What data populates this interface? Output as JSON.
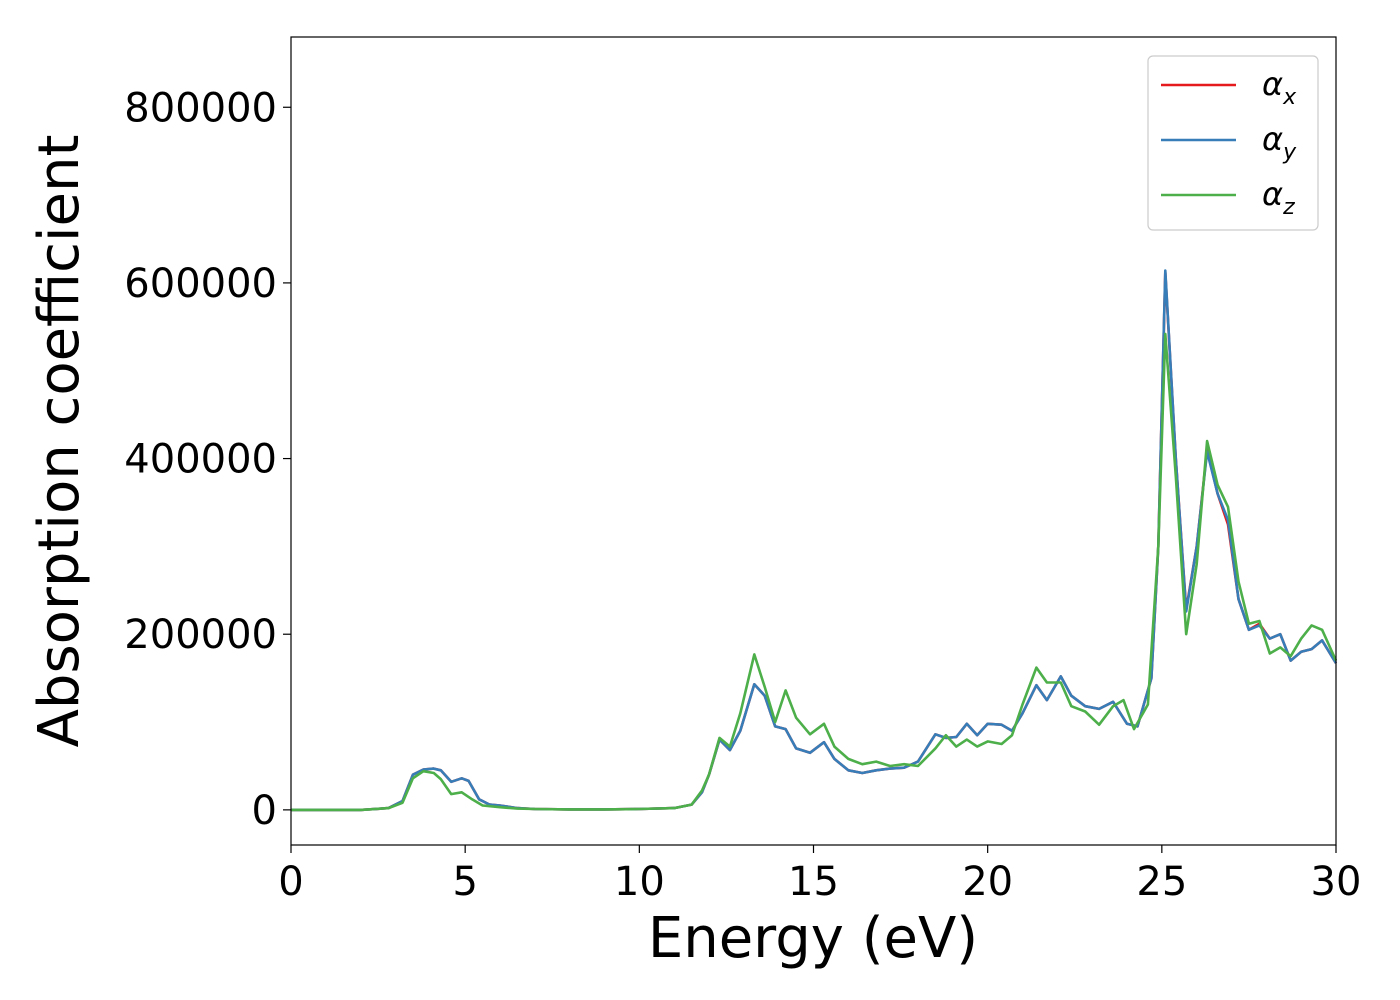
{
  "chart_data": {
    "type": "line",
    "title": "",
    "xlabel": "Energy (eV)",
    "ylabel": "Absorption coefficient",
    "xlim": [
      0,
      30
    ],
    "ylim": [
      -40000,
      880000
    ],
    "xticks": [
      0,
      5,
      10,
      15,
      20,
      25,
      30
    ],
    "yticks": [
      0,
      200000,
      400000,
      600000,
      800000
    ],
    "grid": false,
    "legend_position": "top-right",
    "series": [
      {
        "name": "αx",
        "base": "α",
        "sub": "x",
        "color": "#e41a1c",
        "points": [
          [
            0,
            0
          ],
          [
            2,
            0
          ],
          [
            2.8,
            2000
          ],
          [
            3.2,
            10000
          ],
          [
            3.5,
            40000
          ],
          [
            3.8,
            46000
          ],
          [
            4.1,
            47000
          ],
          [
            4.3,
            45000
          ],
          [
            4.6,
            32000
          ],
          [
            4.9,
            36000
          ],
          [
            5.1,
            33000
          ],
          [
            5.4,
            12000
          ],
          [
            5.7,
            6000
          ],
          [
            6,
            5000
          ],
          [
            6.5,
            2000
          ],
          [
            7,
            1000
          ],
          [
            8,
            500
          ],
          [
            9,
            500
          ],
          [
            10,
            1000
          ],
          [
            11,
            2000
          ],
          [
            11.5,
            6000
          ],
          [
            11.8,
            20000
          ],
          [
            12,
            40000
          ],
          [
            12.3,
            80000
          ],
          [
            12.6,
            68000
          ],
          [
            12.9,
            90000
          ],
          [
            13.3,
            143000
          ],
          [
            13.6,
            130000
          ],
          [
            13.9,
            95000
          ],
          [
            14.2,
            92000
          ],
          [
            14.5,
            70000
          ],
          [
            14.9,
            65000
          ],
          [
            15.3,
            77000
          ],
          [
            15.6,
            58000
          ],
          [
            16,
            45000
          ],
          [
            16.4,
            42000
          ],
          [
            16.8,
            45000
          ],
          [
            17.2,
            47000
          ],
          [
            17.6,
            48000
          ],
          [
            18,
            55000
          ],
          [
            18.5,
            86000
          ],
          [
            18.8,
            82000
          ],
          [
            19.1,
            83000
          ],
          [
            19.4,
            98000
          ],
          [
            19.7,
            85000
          ],
          [
            20,
            98000
          ],
          [
            20.4,
            97000
          ],
          [
            20.7,
            90000
          ],
          [
            21,
            110000
          ],
          [
            21.4,
            142000
          ],
          [
            21.7,
            125000
          ],
          [
            22.1,
            152000
          ],
          [
            22.4,
            130000
          ],
          [
            22.8,
            118000
          ],
          [
            23.2,
            115000
          ],
          [
            23.6,
            123000
          ],
          [
            24,
            98000
          ],
          [
            24.3,
            95000
          ],
          [
            24.7,
            150000
          ],
          [
            24.9,
            300000
          ],
          [
            25.1,
            612000
          ],
          [
            25.4,
            400000
          ],
          [
            25.7,
            228000
          ],
          [
            26,
            300000
          ],
          [
            26.3,
            410000
          ],
          [
            26.6,
            360000
          ],
          [
            26.9,
            325000
          ],
          [
            27.2,
            240000
          ],
          [
            27.5,
            205000
          ],
          [
            27.8,
            212000
          ],
          [
            28.1,
            195000
          ],
          [
            28.4,
            200000
          ],
          [
            28.7,
            170000
          ],
          [
            29,
            180000
          ],
          [
            29.3,
            183000
          ],
          [
            29.6,
            193000
          ],
          [
            30,
            167000
          ]
        ]
      },
      {
        "name": "αy",
        "base": "α",
        "sub": "y",
        "color": "#377eb8",
        "points": [
          [
            0,
            0
          ],
          [
            2,
            0
          ],
          [
            2.8,
            2000
          ],
          [
            3.2,
            10000
          ],
          [
            3.5,
            40000
          ],
          [
            3.8,
            46000
          ],
          [
            4.1,
            47000
          ],
          [
            4.3,
            45000
          ],
          [
            4.6,
            32000
          ],
          [
            4.9,
            36000
          ],
          [
            5.1,
            33000
          ],
          [
            5.4,
            12000
          ],
          [
            5.7,
            6000
          ],
          [
            6,
            5000
          ],
          [
            6.5,
            2000
          ],
          [
            7,
            1000
          ],
          [
            8,
            500
          ],
          [
            9,
            500
          ],
          [
            10,
            1000
          ],
          [
            11,
            2000
          ],
          [
            11.5,
            6000
          ],
          [
            11.8,
            20000
          ],
          [
            12,
            40000
          ],
          [
            12.3,
            80000
          ],
          [
            12.6,
            68000
          ],
          [
            12.9,
            90000
          ],
          [
            13.3,
            143000
          ],
          [
            13.6,
            130000
          ],
          [
            13.9,
            95000
          ],
          [
            14.2,
            92000
          ],
          [
            14.5,
            70000
          ],
          [
            14.9,
            65000
          ],
          [
            15.3,
            77000
          ],
          [
            15.6,
            58000
          ],
          [
            16,
            45000
          ],
          [
            16.4,
            42000
          ],
          [
            16.8,
            45000
          ],
          [
            17.2,
            47000
          ],
          [
            17.6,
            48000
          ],
          [
            18,
            55000
          ],
          [
            18.5,
            86000
          ],
          [
            18.8,
            82000
          ],
          [
            19.1,
            83000
          ],
          [
            19.4,
            98000
          ],
          [
            19.7,
            85000
          ],
          [
            20,
            98000
          ],
          [
            20.4,
            97000
          ],
          [
            20.7,
            90000
          ],
          [
            21,
            110000
          ],
          [
            21.4,
            142000
          ],
          [
            21.7,
            125000
          ],
          [
            22.1,
            152000
          ],
          [
            22.4,
            130000
          ],
          [
            22.8,
            118000
          ],
          [
            23.2,
            115000
          ],
          [
            23.6,
            123000
          ],
          [
            24,
            98000
          ],
          [
            24.3,
            95000
          ],
          [
            24.7,
            150000
          ],
          [
            24.9,
            300000
          ],
          [
            25.1,
            614000
          ],
          [
            25.4,
            400000
          ],
          [
            25.7,
            226000
          ],
          [
            26,
            300000
          ],
          [
            26.3,
            408000
          ],
          [
            26.6,
            360000
          ],
          [
            26.9,
            330000
          ],
          [
            27.2,
            240000
          ],
          [
            27.5,
            205000
          ],
          [
            27.8,
            210000
          ],
          [
            28.1,
            195000
          ],
          [
            28.4,
            200000
          ],
          [
            28.7,
            170000
          ],
          [
            29,
            180000
          ],
          [
            29.3,
            183000
          ],
          [
            29.6,
            193000
          ],
          [
            30,
            167000
          ]
        ]
      },
      {
        "name": "αz",
        "base": "α",
        "sub": "z",
        "color": "#4daf4a",
        "points": [
          [
            0,
            0
          ],
          [
            2,
            0
          ],
          [
            2.8,
            2000
          ],
          [
            3.2,
            8000
          ],
          [
            3.5,
            36000
          ],
          [
            3.8,
            44000
          ],
          [
            4.1,
            42000
          ],
          [
            4.3,
            35000
          ],
          [
            4.6,
            18000
          ],
          [
            4.9,
            20000
          ],
          [
            5.2,
            12000
          ],
          [
            5.5,
            5000
          ],
          [
            6,
            3000
          ],
          [
            6.5,
            1500
          ],
          [
            7,
            1000
          ],
          [
            8,
            500
          ],
          [
            9,
            500
          ],
          [
            10,
            1000
          ],
          [
            11,
            2000
          ],
          [
            11.5,
            6000
          ],
          [
            11.8,
            22000
          ],
          [
            12,
            40000
          ],
          [
            12.3,
            82000
          ],
          [
            12.6,
            72000
          ],
          [
            12.9,
            110000
          ],
          [
            13.3,
            177000
          ],
          [
            13.6,
            140000
          ],
          [
            13.9,
            100000
          ],
          [
            14.2,
            136000
          ],
          [
            14.5,
            105000
          ],
          [
            14.9,
            86000
          ],
          [
            15.3,
            98000
          ],
          [
            15.6,
            72000
          ],
          [
            16,
            58000
          ],
          [
            16.4,
            52000
          ],
          [
            16.8,
            55000
          ],
          [
            17.2,
            50000
          ],
          [
            17.6,
            52000
          ],
          [
            18,
            50000
          ],
          [
            18.5,
            70000
          ],
          [
            18.8,
            85000
          ],
          [
            19.1,
            72000
          ],
          [
            19.4,
            80000
          ],
          [
            19.7,
            72000
          ],
          [
            20,
            78000
          ],
          [
            20.4,
            75000
          ],
          [
            20.7,
            85000
          ],
          [
            21,
            120000
          ],
          [
            21.4,
            162000
          ],
          [
            21.7,
            145000
          ],
          [
            22.1,
            145000
          ],
          [
            22.4,
            118000
          ],
          [
            22.8,
            112000
          ],
          [
            23.2,
            97000
          ],
          [
            23.6,
            118000
          ],
          [
            23.9,
            125000
          ],
          [
            24.2,
            92000
          ],
          [
            24.6,
            120000
          ],
          [
            24.9,
            300000
          ],
          [
            25.1,
            542000
          ],
          [
            25.4,
            380000
          ],
          [
            25.7,
            200000
          ],
          [
            26,
            280000
          ],
          [
            26.3,
            420000
          ],
          [
            26.6,
            370000
          ],
          [
            26.9,
            345000
          ],
          [
            27.2,
            260000
          ],
          [
            27.5,
            212000
          ],
          [
            27.8,
            215000
          ],
          [
            28.1,
            178000
          ],
          [
            28.4,
            185000
          ],
          [
            28.7,
            175000
          ],
          [
            29,
            195000
          ],
          [
            29.3,
            210000
          ],
          [
            29.6,
            205000
          ],
          [
            30,
            170000
          ]
        ]
      }
    ]
  }
}
